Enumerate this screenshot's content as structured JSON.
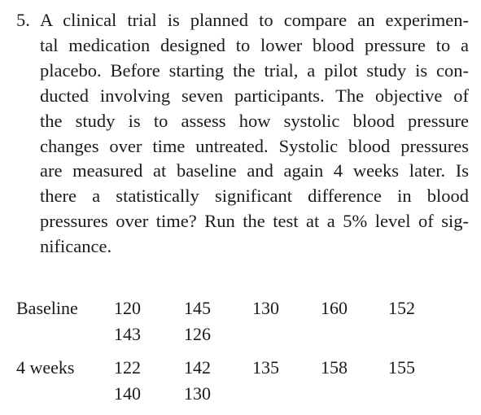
{
  "problem": {
    "number": "5.",
    "lines": [
      "A clinical trial is planned to compare an experimen-",
      "tal medication designed to lower blood pressure to a",
      "placebo. Before starting the trial, a pilot study is con-",
      "ducted involving seven participants. The objective of",
      "the study is to assess how systolic blood pressure",
      "changes over time untreated. Systolic blood pressures",
      "are measured at baseline and again 4 weeks later. Is",
      "there a statistically significant difference in blood",
      "pressures over time? Run the test at a 5% level of sig-",
      "nificance."
    ]
  },
  "data_table": {
    "rows": [
      {
        "label": "Baseline",
        "values": [
          "120",
          "145",
          "130",
          "160",
          "152",
          "143",
          "126"
        ]
      },
      {
        "label": "4 weeks",
        "values": [
          "122",
          "142",
          "135",
          "158",
          "155",
          "140",
          "130"
        ]
      }
    ]
  }
}
